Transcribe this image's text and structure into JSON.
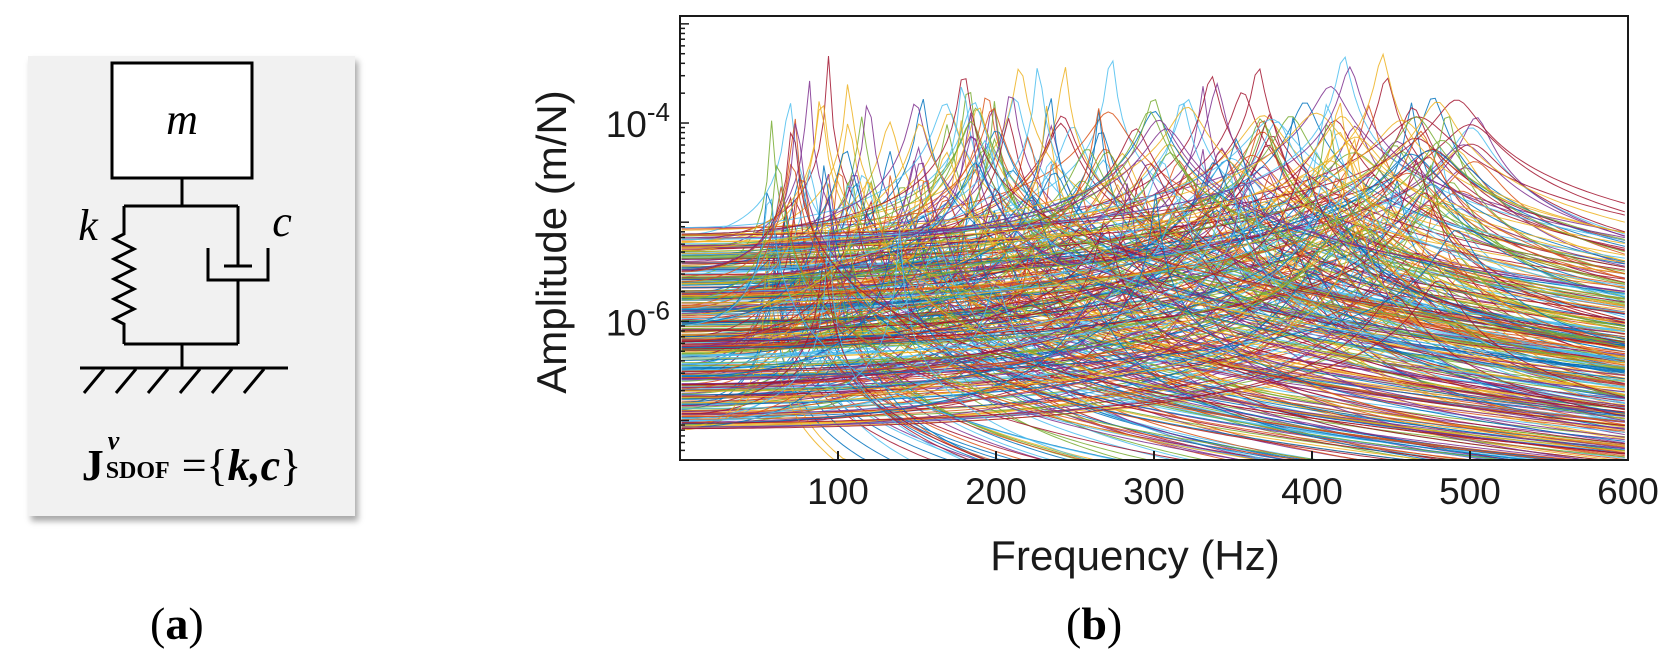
{
  "panel_a": {
    "mass_label": "m",
    "spring_label": "k",
    "damper_label": "c",
    "formula": {
      "symbol": "J",
      "superscript": "v",
      "subscript": "SDOF",
      "equals": "=",
      "open": "{",
      "var1": "k",
      "comma": ",",
      "var2": "c",
      "close": "}"
    },
    "caption_letter": "a"
  },
  "panel_b": {
    "caption_letter": "b"
  },
  "colors": {
    "series_palette": [
      "#0072bd",
      "#d95319",
      "#edb120",
      "#7e2f8e",
      "#77ac30",
      "#4dbeee",
      "#a2142f"
    ],
    "axes": "#1a1a1a"
  },
  "chart_data": {
    "type": "line",
    "xlabel": "Frequency (Hz)",
    "ylabel": "Amplitude (m/N)",
    "x_scale": "linear",
    "y_scale": "log",
    "xlim": [
      0,
      600
    ],
    "ylim": [
      4e-08,
      0.0012
    ],
    "x_ticks": [
      100,
      200,
      300,
      400,
      500,
      600
    ],
    "x_tick_labels": [
      "100",
      "200",
      "300",
      "400",
      "500",
      "600"
    ],
    "y_ticks": [
      1e-06,
      0.0001
    ],
    "y_tick_labels": [
      {
        "base": "10",
        "exp": "-6"
      },
      {
        "base": "10",
        "exp": "-4"
      }
    ],
    "grid": false,
    "legend": "none",
    "description_of_series": "hundreds of single-degree-of-freedom frequency response curves",
    "resonance_range_hz": [
      55,
      505
    ],
    "static_compliance_range": [
      8e-08,
      9e-06
    ],
    "peak_amplitude_range": [
      1.5e-05,
      0.0012
    ]
  }
}
